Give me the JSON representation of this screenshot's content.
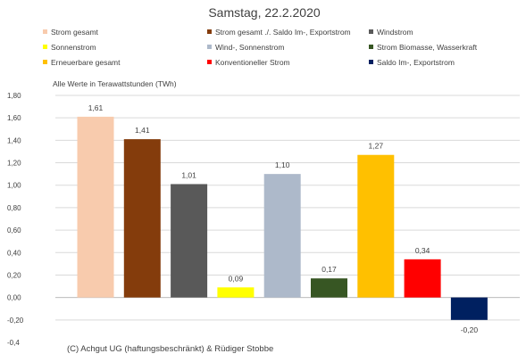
{
  "chart_data": {
    "type": "bar",
    "title": "Samstag, 22.2.2020",
    "note": "Alle Werte in Terawattstunden (TWh)",
    "footer": "(C) Achgut UG (haftungsbeschränkt) & Rüdiger Stobbe",
    "categories": [
      "Strom gesamt",
      "Strom gesamt ./. Saldo Im-, Exportstrom",
      "Windstrom",
      "Sonnenstrom",
      "Wind-, Sonnenstrom",
      "Strom Biomasse, Wasserkraft",
      "Erneuerbare gesamt",
      "Konventioneller Strom",
      "Saldo Im-, Exportstrom"
    ],
    "values": [
      1.61,
      1.41,
      1.01,
      0.09,
      1.1,
      0.17,
      1.27,
      0.34,
      -0.2
    ],
    "value_labels": [
      "1,61",
      "1,41",
      "1,01",
      "0,09",
      "1,10",
      "0,17",
      "1,27",
      "0,34",
      "-0,20"
    ],
    "colors": [
      "#F8CBAD",
      "#843C0C",
      "#595959",
      "#FFFF00",
      "#ADB9CA",
      "#375623",
      "#FFC000",
      "#FF0000",
      "#002060"
    ],
    "ylim": [
      -0.4,
      1.8
    ],
    "yticks": [
      "1,80",
      "1,60",
      "1,40",
      "1,20",
      "1,00",
      "0,80",
      "0,60",
      "0,40",
      "0,20",
      "0,00",
      "-0,20",
      "-0,4"
    ],
    "ytick_values": [
      1.8,
      1.6,
      1.4,
      1.2,
      1.0,
      0.8,
      0.6,
      0.4,
      0.2,
      0.0,
      -0.2,
      -0.4
    ],
    "grid": true,
    "legend_position": "top"
  }
}
